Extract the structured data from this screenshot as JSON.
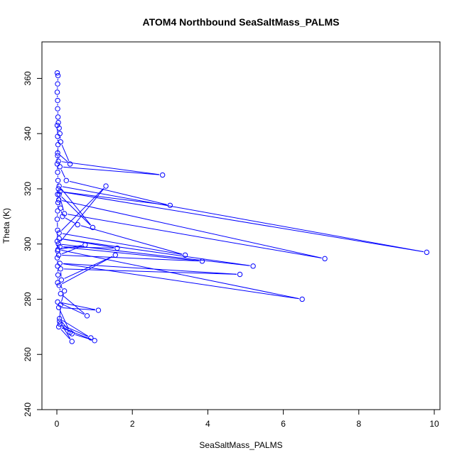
{
  "chart_data": {
    "type": "line",
    "title": "ATOM4 Northbound SeaSaltMass_PALMS",
    "xlabel": "SeaSaltMass_PALMS",
    "ylabel": "Theta (K)",
    "xlim": [
      0,
      10
    ],
    "ylim": [
      240,
      365
    ],
    "x_ticks": [
      "0",
      "2",
      "4",
      "6",
      "8",
      "10"
    ],
    "y_ticks": [
      "240",
      "260",
      "280",
      "300",
      "320",
      "340",
      "360"
    ],
    "grid": false,
    "legend": "none",
    "colors": {
      "series": "#0000ff",
      "axes": "#000000",
      "background": "#ffffff"
    },
    "series": [
      {
        "marker": "open-circle",
        "x": [
          0.01,
          0.03,
          0.02,
          0.01,
          0.02,
          0.02,
          0.03,
          0.04,
          0.06,
          0.08,
          0.1,
          0.35,
          0.02,
          0.04,
          2.8,
          0.08,
          0.25,
          3.0,
          0.08,
          9.8,
          0.06,
          0.95,
          0.06,
          0.2,
          7.1,
          0.05,
          0.1,
          0.15,
          0.55,
          3.4,
          0.06,
          1.3,
          0.04,
          5.2,
          0.06,
          1.6,
          0.08,
          3.85,
          0.05,
          0.75,
          0.03,
          6.5,
          0.08,
          4.85,
          0.1,
          0.12,
          1.55,
          0.06,
          0.1,
          0.8,
          0.02,
          1.1,
          0.05,
          0.35,
          0.07,
          0.9,
          0.08,
          0.4,
          1.0,
          0.05,
          0.4,
          0.07,
          0.1,
          0.2,
          0.02,
          0.03,
          0.02,
          0.01,
          0.02,
          0.01,
          0.02,
          0.01,
          0.02,
          0.03,
          0.02,
          0.04,
          0.03,
          0.02,
          0.01,
          0.02,
          0.03,
          0.02,
          0.01
        ],
        "y": [
          362,
          361,
          358,
          355,
          352,
          349,
          346,
          344,
          342,
          340,
          337,
          329,
          333,
          330,
          325,
          328,
          323,
          314,
          319,
          297,
          321,
          306,
          318,
          311,
          294.7,
          316,
          313,
          310,
          307,
          296,
          304,
          321,
          300,
          292,
          302,
          298.5,
          299,
          293.8,
          296,
          299.7,
          298,
          280,
          293,
          289,
          291,
          287,
          296,
          285,
          282,
          274,
          279,
          276,
          277,
          268,
          273,
          266,
          271,
          267.5,
          265,
          270,
          264.7,
          272,
          278,
          283,
          286,
          288.8,
          292,
          295,
          297.5,
          301,
          305,
          309,
          312,
          315,
          318,
          320,
          323,
          326,
          329,
          332,
          336,
          339,
          343
        ]
      }
    ]
  }
}
